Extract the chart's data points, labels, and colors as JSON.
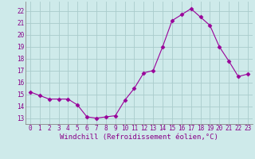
{
  "x": [
    0,
    1,
    2,
    3,
    4,
    5,
    6,
    7,
    8,
    9,
    10,
    11,
    12,
    13,
    14,
    15,
    16,
    17,
    18,
    19,
    20,
    21,
    22,
    23
  ],
  "y": [
    15.2,
    14.9,
    14.6,
    14.6,
    14.6,
    14.1,
    13.1,
    13.0,
    13.1,
    13.2,
    14.5,
    15.5,
    16.8,
    17.0,
    19.0,
    21.2,
    21.7,
    22.2,
    21.5,
    20.8,
    19.0,
    17.8,
    16.5,
    16.7
  ],
  "line_color": "#990099",
  "marker": "D",
  "marker_size": 2.5,
  "bg_color": "#ceeaea",
  "grid_color": "#aacccc",
  "xlabel": "Windchill (Refroidissement éolien,°C)",
  "ylim": [
    12.5,
    22.8
  ],
  "xlim": [
    -0.5,
    23.5
  ],
  "yticks": [
    13,
    14,
    15,
    16,
    17,
    18,
    19,
    20,
    21,
    22
  ],
  "xticks": [
    0,
    1,
    2,
    3,
    4,
    5,
    6,
    7,
    8,
    9,
    10,
    11,
    12,
    13,
    14,
    15,
    16,
    17,
    18,
    19,
    20,
    21,
    22,
    23
  ],
  "font_color": "#880088",
  "tick_fontsize": 5.5,
  "xlabel_fontsize": 6.5
}
